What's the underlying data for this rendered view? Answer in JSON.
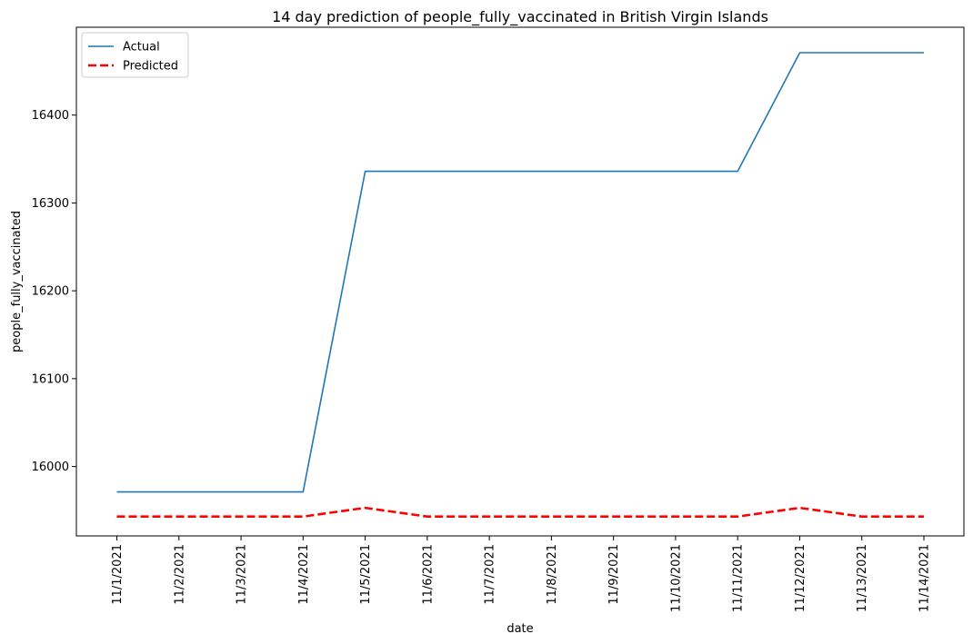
{
  "chart_data": {
    "type": "line",
    "title": "14 day prediction of people_fully_vaccinated in British Virgin Islands",
    "xlabel": "date",
    "ylabel": "people_fully_vaccinated",
    "x": [
      "11/1/2021",
      "11/2/2021",
      "11/3/2021",
      "11/4/2021",
      "11/5/2021",
      "11/6/2021",
      "11/7/2021",
      "11/8/2021",
      "11/9/2021",
      "11/10/2021",
      "11/11/2021",
      "11/12/2021",
      "11/13/2021",
      "11/14/2021"
    ],
    "yticks": [
      16000,
      16100,
      16200,
      16300,
      16400
    ],
    "ylim": [
      15921,
      16500
    ],
    "grid": false,
    "legend_position": "top-left",
    "series": [
      {
        "name": "Actual",
        "color": "#1f77b4",
        "style": "solid",
        "values": [
          15971,
          15971,
          15971,
          15971,
          16336,
          16336,
          16336,
          16336,
          16336,
          16336,
          16336,
          16471,
          16471,
          16471
        ]
      },
      {
        "name": "Predicted",
        "color": "#ff0000",
        "style": "dashed",
        "values": [
          15943,
          15943,
          15943,
          15943,
          15953,
          15943,
          15943,
          15943,
          15943,
          15943,
          15943,
          15953,
          15943,
          15943
        ]
      }
    ]
  }
}
